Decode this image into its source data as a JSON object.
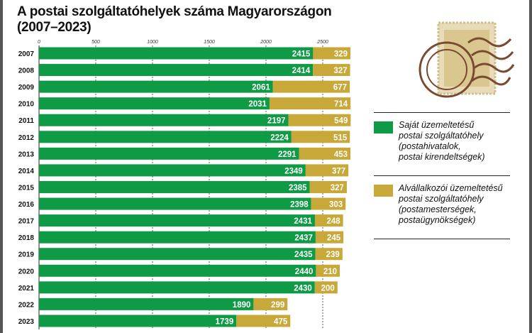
{
  "title_line1": "A postai szolgáltatóhelyek száma Magyarországon",
  "title_line2": "(2007–2023)",
  "colors": {
    "own": "#0f9a45",
    "subcontractor": "#c8a838"
  },
  "chart_data": {
    "type": "bar",
    "orientation": "horizontal",
    "stacked": true,
    "title": "A postai szolgáltatóhelyek száma Magyarországon (2007–2023)",
    "categories": [
      "2007",
      "2008",
      "2009",
      "2010",
      "2011",
      "2012",
      "2013",
      "2014",
      "2015",
      "2016",
      "2017",
      "2018",
      "2019",
      "2020",
      "2021",
      "2022",
      "2023"
    ],
    "xticks": [
      "0",
      "500",
      "1000",
      "1500",
      "2000",
      "2500"
    ],
    "xlim": [
      0,
      2750
    ],
    "grid": true,
    "legend": "right",
    "series": [
      {
        "name": "Saját üzemeltetésű postai szolgáltatóhely (postahivatalok, postai kirendeltségek)",
        "values": [
          2415,
          2414,
          2061,
          2031,
          2197,
          2224,
          2291,
          2349,
          2385,
          2398,
          2431,
          2437,
          2435,
          2440,
          2430,
          1890,
          1739
        ]
      },
      {
        "name": "Alvállalkozói üzemeltetésű postai szolgáltatóhely (postamesterségek, postaügynökségek)",
        "values": [
          329,
          327,
          677,
          714,
          549,
          515,
          453,
          377,
          327,
          303,
          248,
          245,
          239,
          210,
          200,
          299,
          475
        ]
      }
    ]
  },
  "legend": [
    {
      "lines": [
        "Saját üzemeltetésű",
        "postai szolgáltatóhely",
        "(postahivatalok,",
        "postai kirendeltségek)"
      ]
    },
    {
      "lines": [
        "Alvállalkozói üzemeltetésű",
        "postai szolgáltatóhely",
        "(postamesterségek,",
        "postaügynökségek)"
      ]
    }
  ]
}
